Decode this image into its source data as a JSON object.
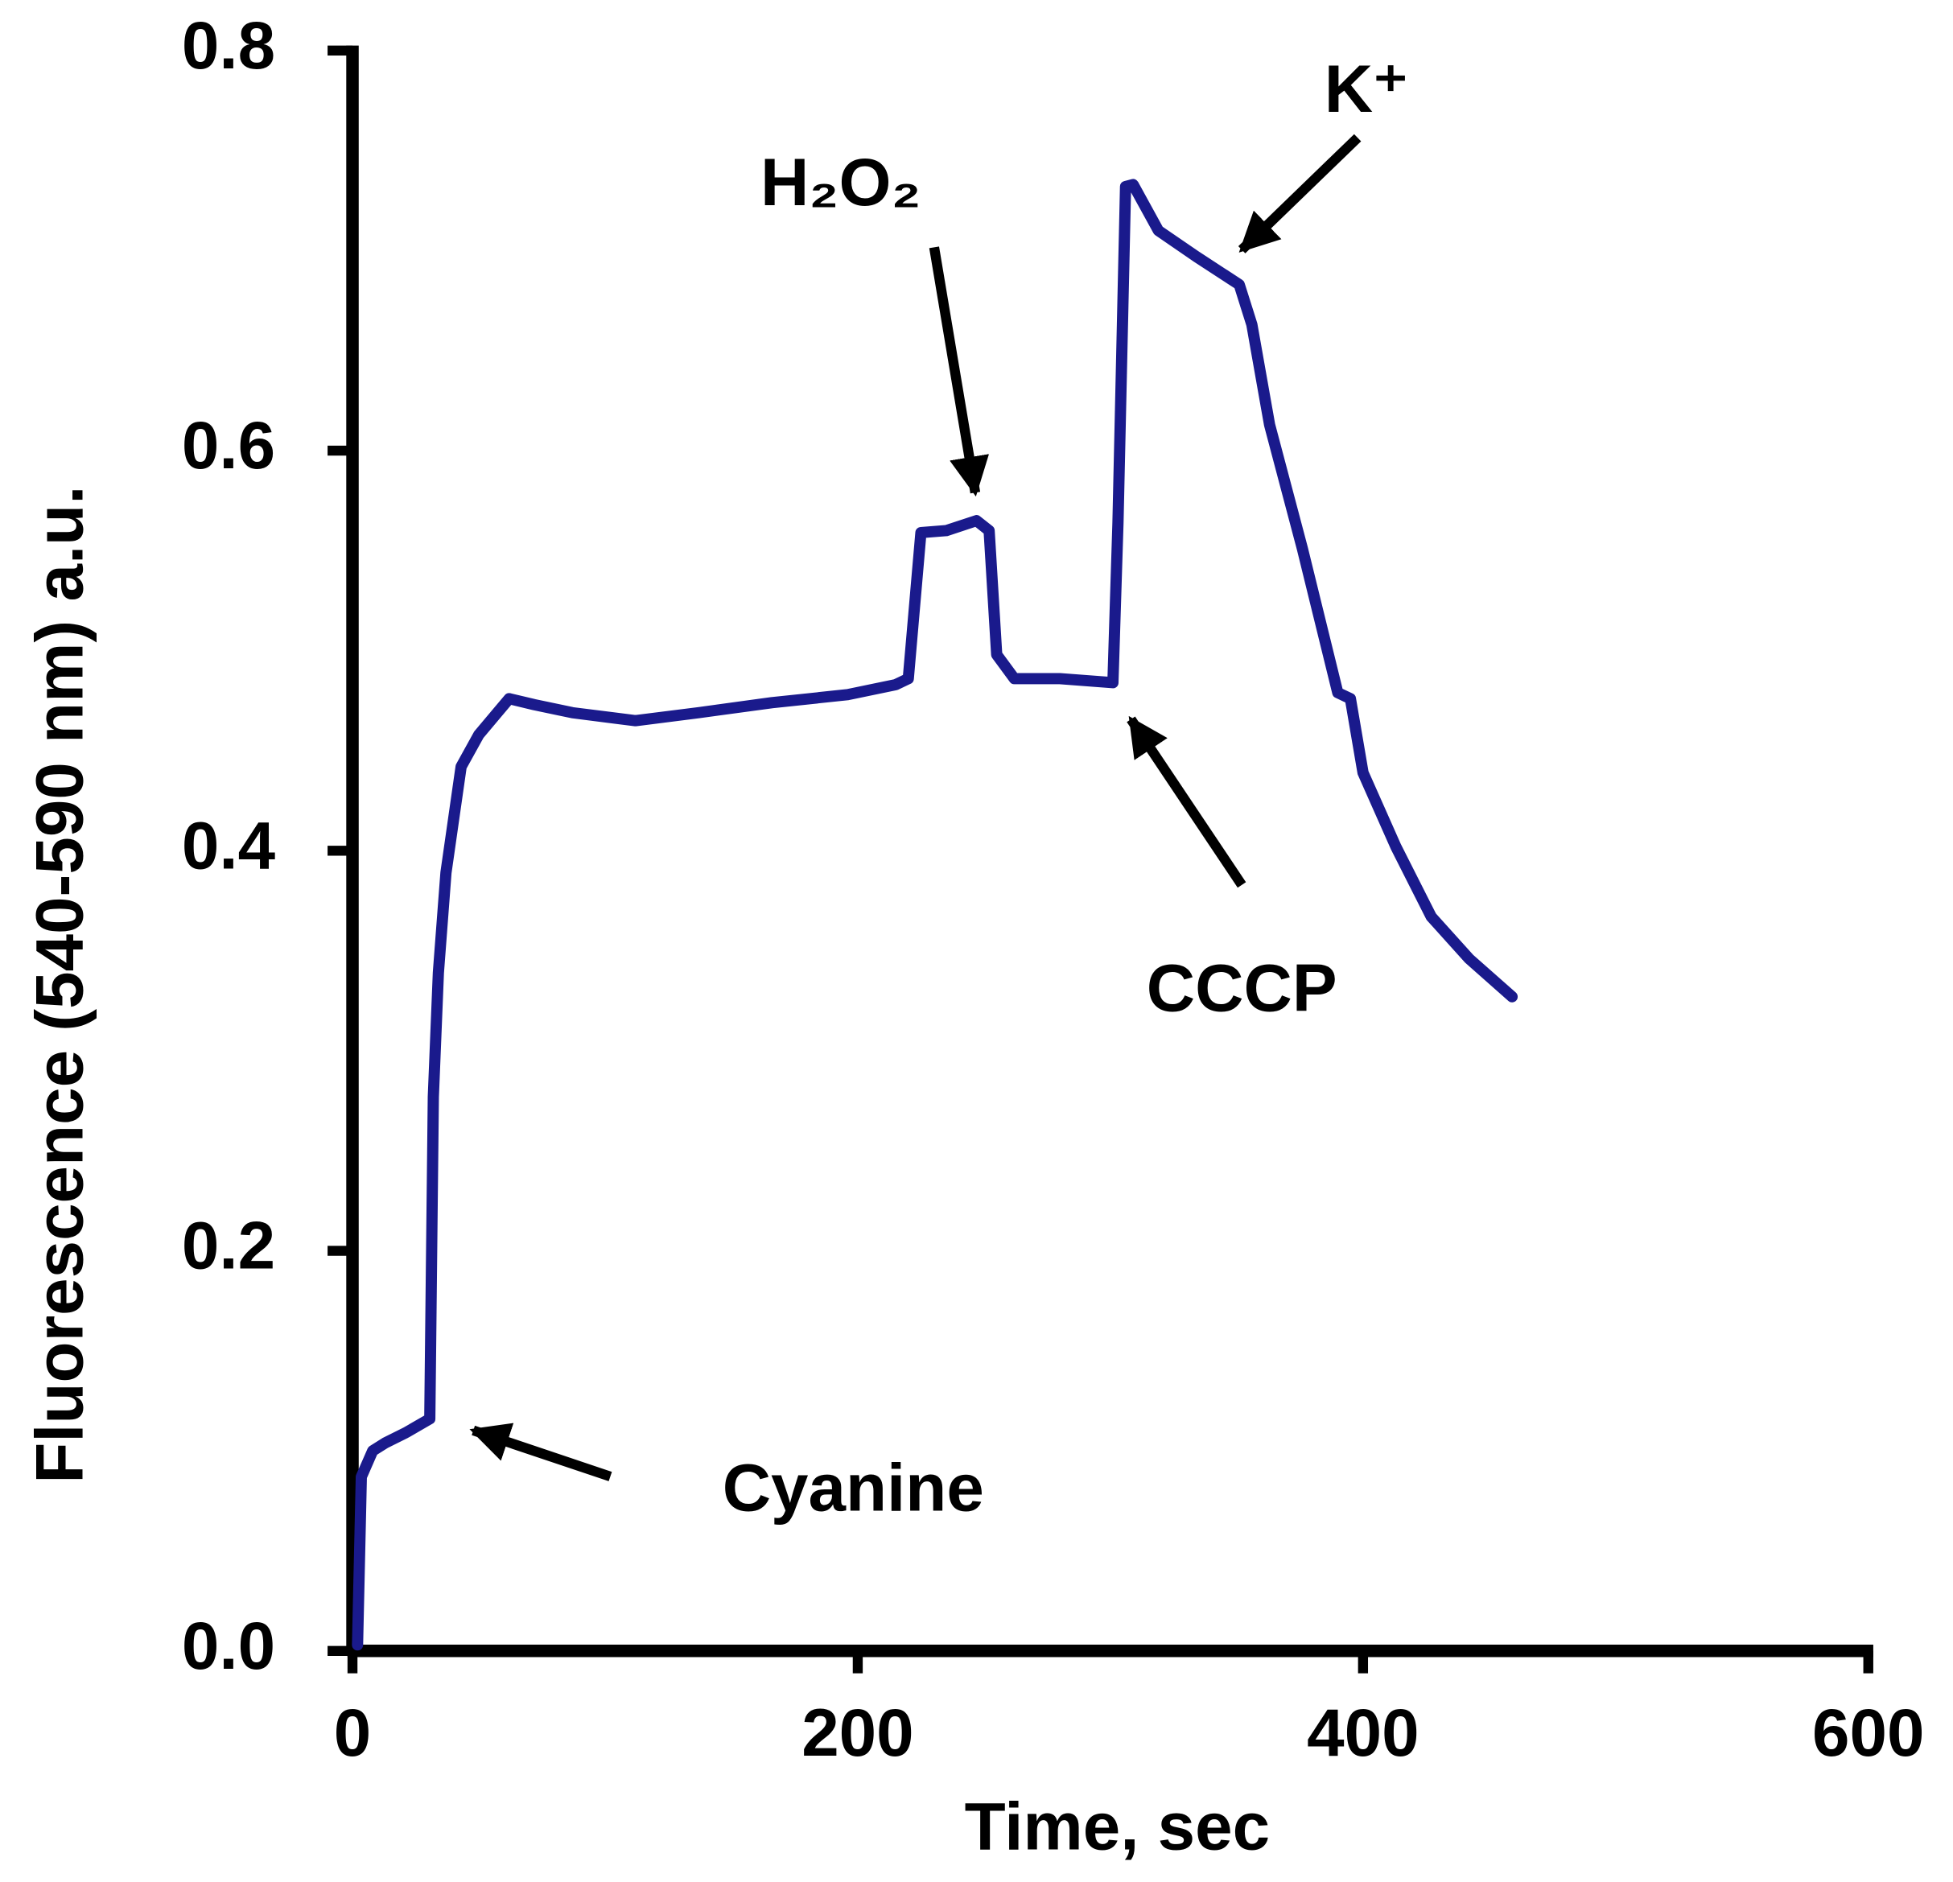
{
  "chart_data": {
    "type": "line",
    "xlabel": "Time, sec",
    "ylabel": "Fluorescence (540-590 nm) a.u.",
    "color": "#1a1a8c",
    "x": [
      2,
      3.5,
      8,
      13,
      21,
      30.6,
      32,
      34,
      37,
      43,
      50,
      58,
      62,
      72,
      87,
      112,
      137,
      166,
      196,
      215,
      220,
      225,
      235,
      247,
      252,
      255,
      262,
      280,
      301,
      303,
      306,
      309,
      319,
      334,
      351,
      356,
      363,
      376,
      390,
      395,
      400,
      413,
      427,
      442,
      459
    ],
    "values": [
      0.003,
      0.087,
      0.1,
      0.104,
      0.109,
      0.116,
      0.277,
      0.339,
      0.389,
      0.442,
      0.458,
      0.47,
      0.476,
      0.473,
      0.469,
      0.465,
      0.469,
      0.474,
      0.478,
      0.483,
      0.486,
      0.559,
      0.56,
      0.565,
      0.56,
      0.498,
      0.486,
      0.486,
      0.484,
      0.564,
      0.732,
      0.733,
      0.71,
      0.697,
      0.683,
      0.663,
      0.613,
      0.551,
      0.479,
      0.476,
      0.439,
      0.402,
      0.367,
      0.346,
      0.327
    ],
    "xlim": [
      0,
      600
    ],
    "xticks": [
      0,
      200,
      400,
      600
    ],
    "ylim": [
      0,
      0.8
    ],
    "yticks": [
      {
        "value": 0,
        "label": "0.0"
      },
      0.2,
      0.4,
      0.6,
      0.8
    ],
    "annotations": [
      "Cyanine",
      "H₂O₂",
      "CCCP",
      "K⁺"
    ]
  }
}
